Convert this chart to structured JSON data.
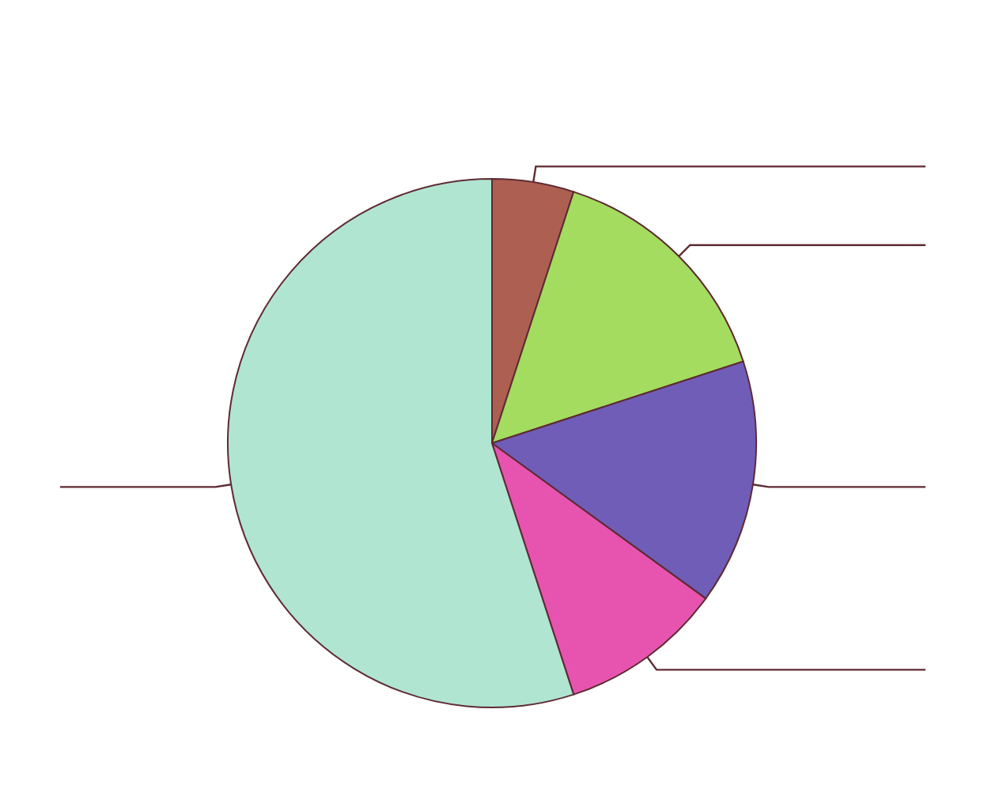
{
  "chart_data": {
    "type": "pie",
    "categories": [
      null,
      null,
      null,
      null,
      null
    ],
    "values": [
      5,
      15,
      15,
      10,
      55
    ],
    "colors": [
      "#ad5f52",
      "#a3dc5f",
      "#6f5db8",
      "#e754b0",
      "#b0e5d2"
    ]
  }
}
